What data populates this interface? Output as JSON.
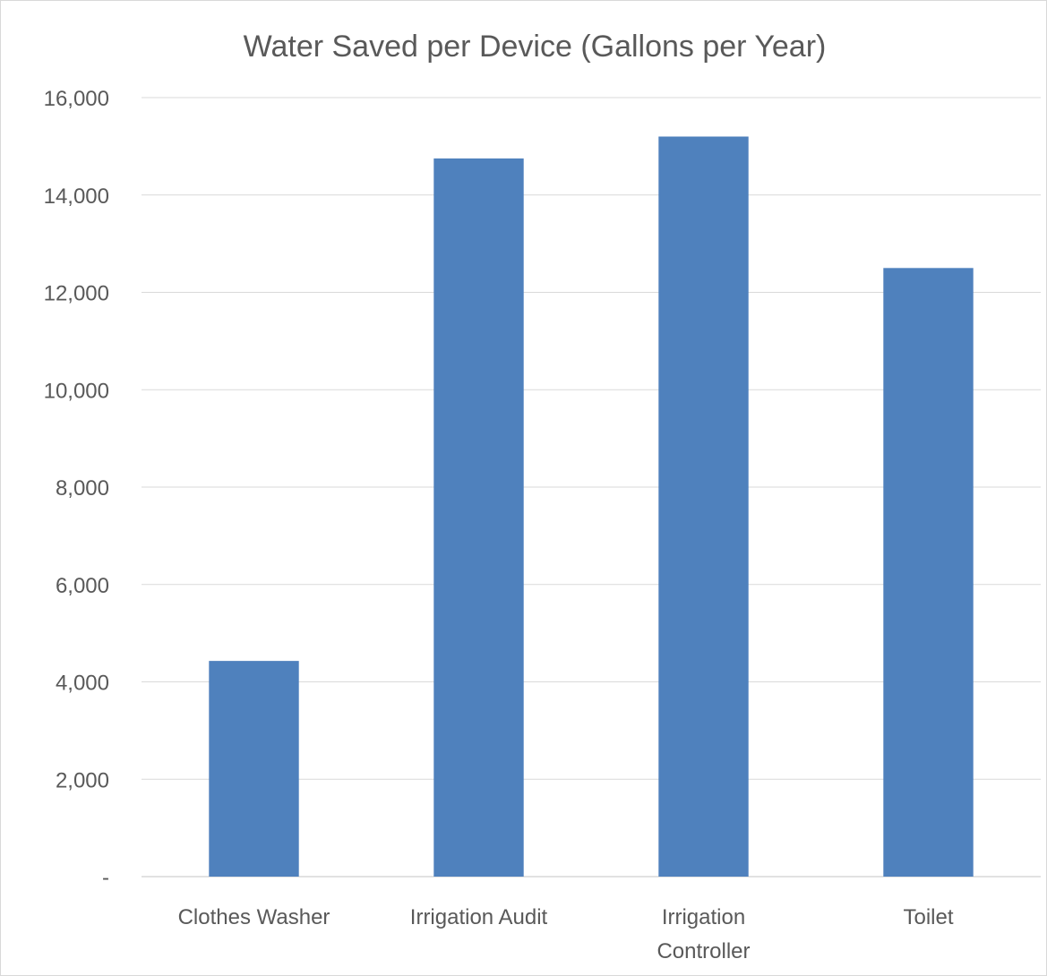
{
  "chart_data": {
    "type": "bar",
    "title": "Water Saved per Device (Gallons per Year)",
    "xlabel": "",
    "ylabel": "",
    "categories": [
      [
        "Clothes Washer"
      ],
      [
        "Irrigation Audit"
      ],
      [
        "Irrigation",
        "Controller"
      ],
      [
        "Toilet"
      ]
    ],
    "values": [
      4430,
      14750,
      15200,
      12500
    ],
    "ylim": [
      0,
      16000
    ],
    "yticks": [
      0,
      2000,
      4000,
      6000,
      8000,
      10000,
      12000,
      14000,
      16000
    ],
    "ytick_labels": [
      "-",
      "2,000",
      "4,000",
      "6,000",
      "8,000",
      "10,000",
      "12,000",
      "14,000",
      "16,000"
    ],
    "bar_color": "#4f81bd",
    "grid": true,
    "legend": "none"
  }
}
